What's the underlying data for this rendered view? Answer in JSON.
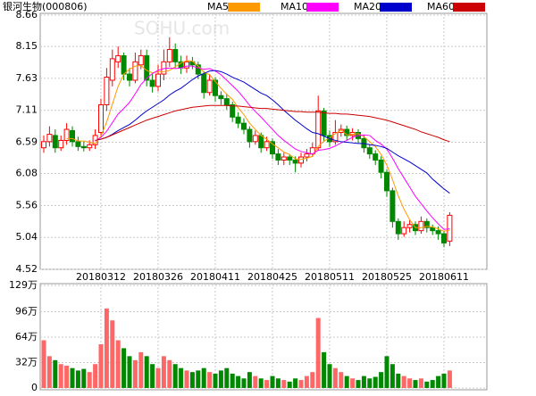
{
  "chart_data": {
    "type": "candlestick",
    "title": "银河生物(000806)",
    "watermark": "SOHU.com",
    "grid": true,
    "legend": "top",
    "categories": [
      null,
      null,
      null,
      null,
      null,
      null,
      null,
      null,
      null,
      null,
      "20180312",
      null,
      null,
      null,
      null,
      null,
      null,
      null,
      null,
      null,
      "20180326",
      null,
      null,
      null,
      null,
      null,
      null,
      null,
      null,
      null,
      "20180411",
      null,
      null,
      null,
      null,
      null,
      null,
      null,
      null,
      null,
      "20180425",
      null,
      null,
      null,
      null,
      null,
      null,
      null,
      null,
      null,
      "20180511",
      null,
      null,
      null,
      null,
      null,
      null,
      null,
      null,
      null,
      "20180525",
      null,
      null,
      null,
      null,
      null,
      null,
      null,
      null,
      null,
      "20180611",
      null
    ],
    "open": [
      6.5,
      6.6,
      6.7,
      6.5,
      6.62,
      6.78,
      6.6,
      6.52,
      6.5,
      6.55,
      6.75,
      7.2,
      7.6,
      7.9,
      8.0,
      7.7,
      7.6,
      7.85,
      8.0,
      7.6,
      7.5,
      7.7,
      7.9,
      8.1,
      7.9,
      7.8,
      7.9,
      7.85,
      7.7,
      7.4,
      7.6,
      7.35,
      7.3,
      7.2,
      7.0,
      6.9,
      6.8,
      6.6,
      6.7,
      6.5,
      6.6,
      6.4,
      6.3,
      6.35,
      6.3,
      6.25,
      6.35,
      6.4,
      6.5,
      7.1,
      6.7,
      6.6,
      6.75,
      6.8,
      6.7,
      6.75,
      6.65,
      6.5,
      6.4,
      6.3,
      6.1,
      5.8,
      5.3,
      5.1,
      5.2,
      5.25,
      5.15,
      5.3,
      5.2,
      5.15,
      5.1,
      4.98
    ],
    "high": [
      6.7,
      6.85,
      6.8,
      6.7,
      6.9,
      6.85,
      6.68,
      6.6,
      6.62,
      6.8,
      7.3,
      7.8,
      8.1,
      8.15,
      8.05,
      7.8,
      8.05,
      8.1,
      8.1,
      7.7,
      7.85,
      8.1,
      8.3,
      8.2,
      8.0,
      8.0,
      7.98,
      7.9,
      7.75,
      7.7,
      7.65,
      7.42,
      7.38,
      7.25,
      7.08,
      6.98,
      6.85,
      6.78,
      6.75,
      6.68,
      6.65,
      6.48,
      6.42,
      6.4,
      6.36,
      6.42,
      6.48,
      6.58,
      7.35,
      7.15,
      6.78,
      6.95,
      6.88,
      6.86,
      6.82,
      6.8,
      6.7,
      6.56,
      6.46,
      6.36,
      6.15,
      5.85,
      5.35,
      5.3,
      5.32,
      5.3,
      5.38,
      5.35,
      5.25,
      5.22,
      5.15,
      5.45
    ],
    "low": [
      6.42,
      6.52,
      6.42,
      6.45,
      6.55,
      6.52,
      6.45,
      6.44,
      6.45,
      6.48,
      6.7,
      7.1,
      7.5,
      7.8,
      7.6,
      7.5,
      7.55,
      7.78,
      7.5,
      7.4,
      7.42,
      7.6,
      7.82,
      7.8,
      7.7,
      7.72,
      7.78,
      7.62,
      7.3,
      7.35,
      7.25,
      7.2,
      7.12,
      6.92,
      6.82,
      6.72,
      6.5,
      6.55,
      6.42,
      6.45,
      6.32,
      6.22,
      6.22,
      6.22,
      6.1,
      6.18,
      6.28,
      6.35,
      6.45,
      6.6,
      6.52,
      6.55,
      6.68,
      6.62,
      6.62,
      6.58,
      6.42,
      6.32,
      6.22,
      6.0,
      5.7,
      5.2,
      5.0,
      5.05,
      5.12,
      5.08,
      5.1,
      5.12,
      5.08,
      5.0,
      4.88,
      4.9
    ],
    "close": [
      6.6,
      6.72,
      6.5,
      6.62,
      6.8,
      6.6,
      6.52,
      6.5,
      6.55,
      6.7,
      7.2,
      7.65,
      7.95,
      8.0,
      7.7,
      7.6,
      7.9,
      8.0,
      7.6,
      7.5,
      7.7,
      7.9,
      8.1,
      7.9,
      7.8,
      7.9,
      7.85,
      7.7,
      7.4,
      7.6,
      7.35,
      7.3,
      7.2,
      7.0,
      6.9,
      6.8,
      6.6,
      6.7,
      6.5,
      6.6,
      6.4,
      6.3,
      6.35,
      6.3,
      6.25,
      6.35,
      6.4,
      6.5,
      7.1,
      6.7,
      6.6,
      6.75,
      6.8,
      6.7,
      6.75,
      6.65,
      6.5,
      6.4,
      6.3,
      6.1,
      5.8,
      5.3,
      5.1,
      5.2,
      5.25,
      5.15,
      5.3,
      5.2,
      5.15,
      5.1,
      4.95,
      5.4
    ],
    "volume": [
      60,
      40,
      35,
      30,
      28,
      25,
      22,
      24,
      20,
      30,
      55,
      100,
      85,
      60,
      50,
      40,
      35,
      45,
      40,
      30,
      25,
      40,
      35,
      30,
      25,
      22,
      20,
      22,
      25,
      20,
      18,
      22,
      25,
      18,
      15,
      12,
      20,
      15,
      12,
      10,
      15,
      12,
      10,
      8,
      12,
      10,
      15,
      20,
      88,
      45,
      30,
      25,
      20,
      15,
      12,
      10,
      15,
      12,
      14,
      20,
      40,
      30,
      18,
      15,
      12,
      10,
      12,
      8,
      10,
      15,
      18,
      22
    ],
    "up_color": "#ff0000",
    "down_color": "#008800",
    "series": [
      {
        "name": "MA5",
        "color": "#ff9900",
        "values": [
          null,
          null,
          null,
          null,
          6.65,
          6.65,
          6.61,
          6.61,
          6.59,
          6.57,
          6.69,
          6.92,
          7.21,
          7.5,
          7.7,
          7.78,
          7.83,
          7.84,
          7.76,
          7.72,
          7.74,
          7.74,
          7.76,
          7.82,
          7.88,
          7.92,
          7.91,
          7.83,
          7.73,
          7.69,
          7.58,
          7.47,
          7.37,
          7.29,
          7.15,
          7.04,
          6.9,
          6.8,
          6.7,
          6.64,
          6.56,
          6.5,
          6.43,
          6.39,
          6.32,
          6.31,
          6.33,
          6.36,
          6.52,
          6.61,
          6.66,
          6.73,
          6.79,
          6.71,
          6.72,
          6.73,
          6.68,
          6.6,
          6.52,
          6.39,
          6.22,
          5.98,
          5.72,
          5.5,
          5.33,
          5.2,
          5.2,
          5.22,
          5.21,
          5.18,
          5.14,
          5.16
        ]
      },
      {
        "name": "MA10",
        "color": "#ff00ff",
        "values": [
          null,
          null,
          null,
          null,
          null,
          null,
          null,
          null,
          null,
          6.61,
          6.67,
          6.77,
          6.91,
          7.05,
          7.14,
          7.24,
          7.38,
          7.53,
          7.63,
          7.71,
          7.76,
          7.79,
          7.8,
          7.79,
          7.8,
          7.83,
          7.83,
          7.8,
          7.78,
          7.79,
          7.75,
          7.69,
          7.6,
          7.51,
          7.42,
          7.31,
          7.19,
          7.09,
          7.0,
          6.9,
          6.8,
          6.7,
          6.62,
          6.55,
          6.48,
          6.44,
          6.42,
          6.4,
          6.46,
          6.47,
          6.49,
          6.53,
          6.58,
          6.62,
          6.67,
          6.7,
          6.71,
          6.7,
          6.62,
          6.56,
          6.48,
          6.33,
          6.16,
          6.01,
          5.86,
          5.71,
          5.59,
          5.47,
          5.36,
          5.26,
          5.17,
          5.18
        ]
      },
      {
        "name": "MA20",
        "color": "#0000cc",
        "values": [
          null,
          null,
          null,
          null,
          null,
          null,
          null,
          null,
          null,
          6.62,
          6.64,
          6.67,
          6.72,
          6.78,
          6.83,
          6.88,
          6.95,
          7.03,
          7.1,
          7.16,
          7.22,
          7.28,
          7.36,
          7.42,
          7.47,
          7.54,
          7.61,
          7.67,
          7.71,
          7.75,
          7.76,
          7.74,
          7.7,
          7.65,
          7.61,
          7.57,
          7.51,
          7.45,
          7.39,
          7.35,
          7.28,
          7.2,
          7.11,
          7.03,
          6.95,
          6.88,
          6.81,
          6.75,
          6.73,
          6.69,
          6.65,
          6.62,
          6.6,
          6.59,
          6.58,
          6.57,
          6.57,
          6.55,
          6.54,
          6.52,
          6.49,
          6.43,
          6.37,
          6.32,
          6.27,
          6.21,
          6.15,
          6.09,
          5.99,
          5.91,
          5.83,
          5.76
        ]
      },
      {
        "name": "MA60",
        "color": "#cc0000",
        "values": [
          null,
          null,
          null,
          null,
          null,
          null,
          null,
          null,
          null,
          6.62,
          6.64,
          6.67,
          6.71,
          6.75,
          6.79,
          6.83,
          6.87,
          6.91,
          6.95,
          6.98,
          7.01,
          7.04,
          7.07,
          7.1,
          7.12,
          7.14,
          7.16,
          7.17,
          7.18,
          7.19,
          7.19,
          7.19,
          7.19,
          7.18,
          7.18,
          7.17,
          7.16,
          7.15,
          7.14,
          7.14,
          7.13,
          7.12,
          7.11,
          7.1,
          7.09,
          7.09,
          7.08,
          7.08,
          7.08,
          7.07,
          7.06,
          7.06,
          7.05,
          7.05,
          7.04,
          7.03,
          7.02,
          7.01,
          6.99,
          6.97,
          6.95,
          6.92,
          6.89,
          6.86,
          6.83,
          6.8,
          6.76,
          6.73,
          6.7,
          6.67,
          6.63,
          6.6
        ]
      }
    ],
    "ylim": [
      4.52,
      8.66
    ],
    "yticks": [
      8.66,
      8.15,
      7.63,
      7.11,
      6.59,
      6.08,
      5.56,
      5.04,
      4.52
    ],
    "vlim": [
      0,
      129
    ],
    "vticks": [
      {
        "value": 129,
        "label": "129万"
      },
      {
        "value": 96,
        "label": "96万"
      },
      {
        "value": 64,
        "label": "64万"
      },
      {
        "value": 32,
        "label": "32万"
      },
      0
    ]
  }
}
